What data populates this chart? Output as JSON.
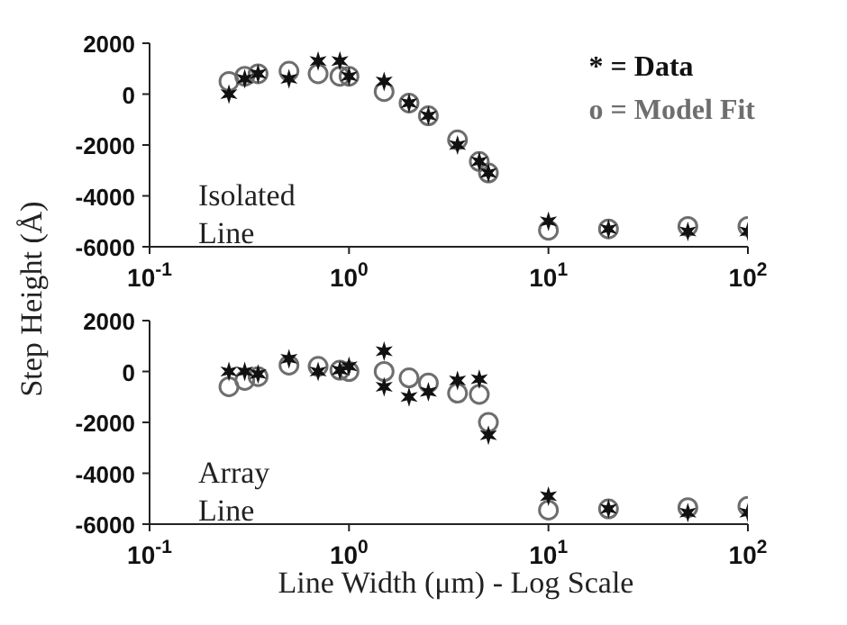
{
  "chart_data": [
    {
      "type": "scatter",
      "ylabel": "Step Height (Å)",
      "annotations": [
        "Isolated Line"
      ],
      "legend": "top right",
      "log": "x",
      "grid": false,
      "xlim": [
        0.1,
        100
      ],
      "xticks": [
        {
          "value": 0.1,
          "label": "10$^{-1}$"
        },
        {
          "value": 1,
          "label": "10$^{0}$"
        },
        {
          "value": 10,
          "label": "10$^{1}$"
        },
        {
          "value": 100,
          "label": "10$^{2}$"
        }
      ],
      "ylim": [
        -6000,
        2000
      ],
      "yticks": [
        -6000,
        -4000,
        -2000,
        0,
        2000
      ],
      "series": [
        {
          "name": "o = Model Fit",
          "color": "#6e6e6e",
          "marker": "circle",
          "x": [
            0.25,
            0.3,
            0.35,
            0.5,
            0.7,
            0.9,
            1,
            1.5,
            2,
            2.5,
            3.5,
            4.5,
            5,
            10,
            20,
            50,
            100
          ],
          "values": [
            500,
            700,
            800,
            900,
            800,
            700,
            700,
            100,
            -350,
            -850,
            -1800,
            -2650,
            -3100,
            -5350,
            -5300,
            -5200,
            -5200
          ]
        },
        {
          "name": "* = Data",
          "color": "#111111",
          "marker": "cross",
          "x": [
            0.25,
            0.3,
            0.35,
            0.5,
            0.7,
            0.9,
            1,
            1.5,
            2,
            2.5,
            3.5,
            4.5,
            5,
            10,
            20,
            50,
            100
          ],
          "values": [
            0,
            600,
            800,
            600,
            1300,
            1300,
            700,
            500,
            -350,
            -850,
            -2000,
            -2650,
            -3100,
            -5000,
            -5300,
            -5400,
            -5400
          ]
        }
      ]
    },
    {
      "type": "scatter",
      "xlabel": "Line Width (μm) - Log Scale",
      "annotations": [
        "Array Line"
      ],
      "log": "x",
      "grid": false,
      "xlim": [
        0.1,
        100
      ],
      "xticks": [
        {
          "value": 0.1,
          "label": "10$^{-1}$"
        },
        {
          "value": 1,
          "label": "10$^{0}$"
        },
        {
          "value": 10,
          "label": "10$^{1}$"
        },
        {
          "value": 100,
          "label": "10$^{2}$"
        }
      ],
      "ylim": [
        -6000,
        2000
      ],
      "yticks": [
        -6000,
        -4000,
        -2000,
        0,
        2000
      ],
      "series": [
        {
          "color": "#6e6e6e",
          "marker": "circle",
          "x": [
            0.25,
            0.3,
            0.35,
            0.5,
            0.7,
            0.9,
            1,
            1.5,
            2,
            2.5,
            3.5,
            4.5,
            5,
            10,
            20,
            50,
            100
          ],
          "values": [
            -600,
            -350,
            -200,
            250,
            200,
            50,
            0,
            0,
            -250,
            -450,
            -850,
            -900,
            -2000,
            -5450,
            -5400,
            -5350,
            -5300
          ]
        },
        {
          "color": "#111111",
          "marker": "cross",
          "x": [
            0.25,
            0.3,
            0.35,
            0.5,
            0.7,
            0.9,
            1,
            1.5,
            1.5,
            2,
            2.5,
            3.5,
            4.5,
            5,
            10,
            20,
            50,
            100
          ],
          "values": [
            0,
            0,
            -100,
            500,
            0,
            50,
            200,
            800,
            -600,
            -1000,
            -800,
            -350,
            -300,
            -2500,
            -4900,
            -5400,
            -5550,
            -5550
          ]
        }
      ]
    }
  ]
}
